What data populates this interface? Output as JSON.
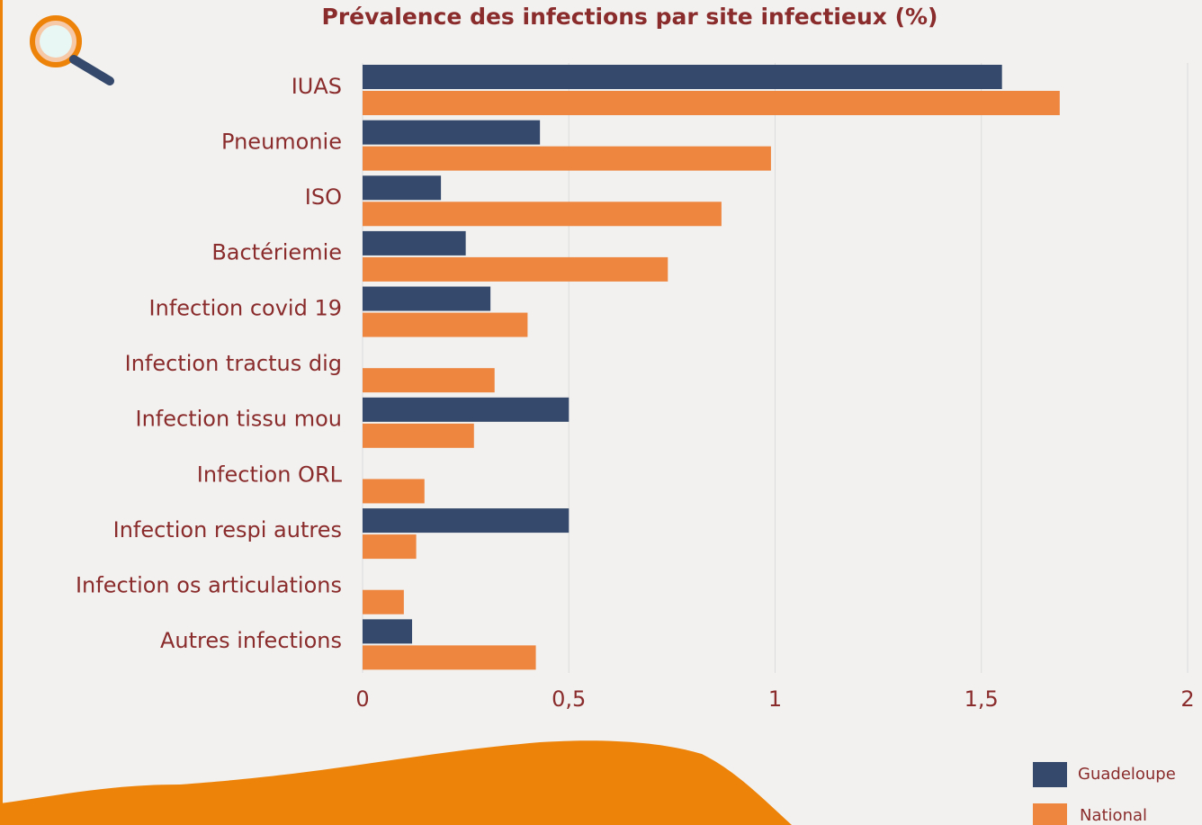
{
  "chart_data": {
    "type": "hbar",
    "title": "Prévalence des infections par site infectieux  (%)",
    "categories": [
      "IUAS",
      "Pneumonie",
      "ISO",
      "Bactériemie",
      "Infection covid 19",
      "Infection tractus dig",
      "Infection tissu mou",
      "Infection ORL",
      "Infection respi autres",
      "Infection os  articulations",
      "Autres infections"
    ],
    "series": [
      {
        "name": "Guadeloupe",
        "color": "#34496b",
        "values": [
          1.55,
          0.43,
          0.19,
          0.25,
          0.31,
          0,
          0.5,
          0,
          0.5,
          0,
          0.12
        ]
      },
      {
        "name": "National",
        "color": "#ee8640",
        "values": [
          1.69,
          0.99,
          0.87,
          0.74,
          0.4,
          0.32,
          0.27,
          0.15,
          0.13,
          0.1,
          0.42
        ]
      }
    ],
    "xlim": [
      0,
      2
    ],
    "xticks": [
      0,
      {
        "value": 0.5,
        "label": "0,5"
      },
      1,
      {
        "value": 1.5,
        "label": "1,5"
      },
      2
    ],
    "grid": true
  }
}
